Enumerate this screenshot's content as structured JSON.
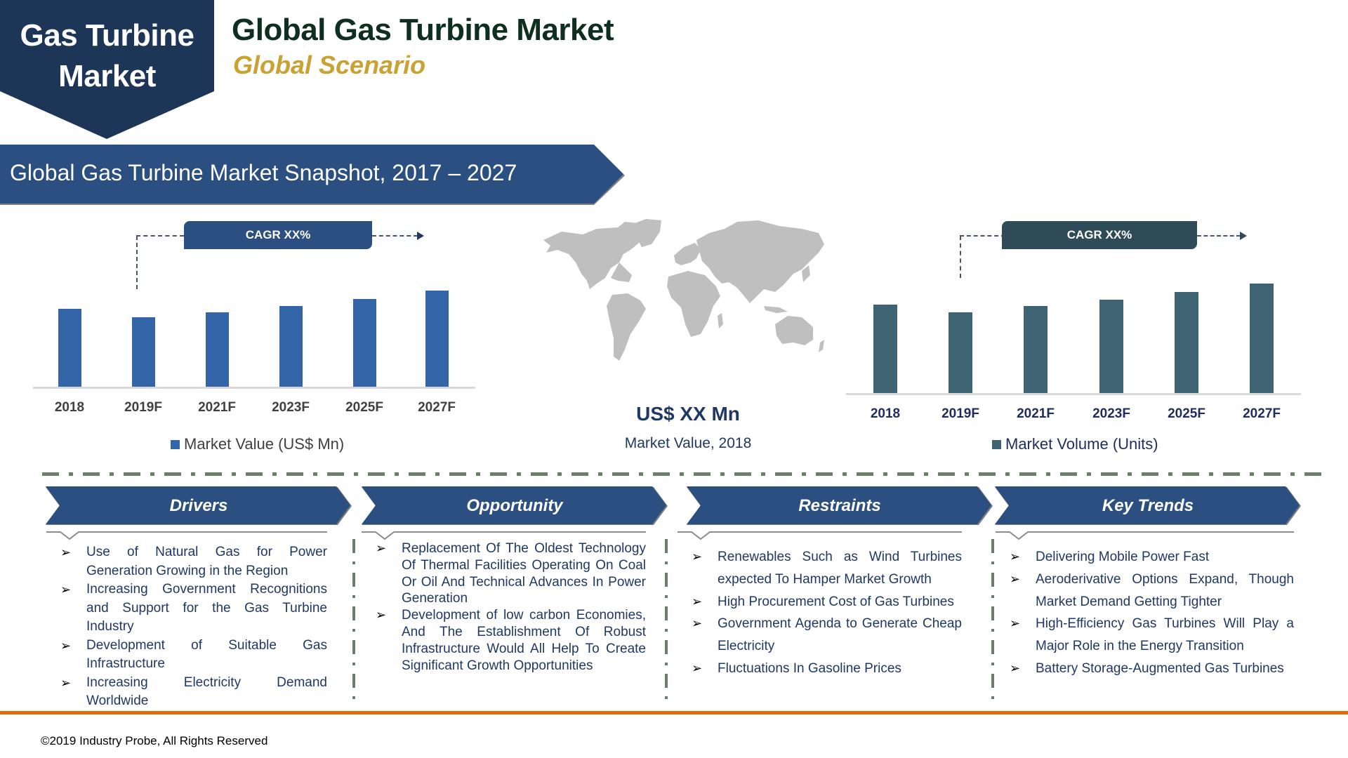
{
  "header": {
    "badge_line1": "Gas Turbine",
    "badge_line2": "Market",
    "title": "Global Gas Turbine Market",
    "subtitle": "Global Scenario"
  },
  "banner": {
    "title": "Global Gas Turbine Market Snapshot, 2017 – 2027"
  },
  "colors": {
    "navy": "#1d3557",
    "banner_blue": "#2a4f80",
    "value_bar": "#3465a9",
    "volume_bar": "#3e6373",
    "volume_cagr": "#2f4b57",
    "gold": "#c9a233",
    "orange": "#e36c0a",
    "divider": "#6b7e6b"
  },
  "chart_data": [
    {
      "type": "bar",
      "title": "Market Value (US$ Mn)",
      "categories": [
        "2018",
        "2019F",
        "2021F",
        "2023F",
        "2025F",
        "2027F"
      ],
      "values": [
        112,
        100,
        107,
        116,
        126,
        138
      ],
      "value_note": "relative bar heights; no axis values shown",
      "annotation": "CAGR XX%",
      "legend": [
        "Market Value (US$ Mn)"
      ],
      "legend_position": "bottom",
      "grid": false,
      "xlabel": "",
      "ylabel": ""
    },
    {
      "type": "bar",
      "title": "Market Volume (Units)",
      "categories": [
        "2018",
        "2019F",
        "2021F",
        "2023F",
        "2025F",
        "2027F"
      ],
      "values": [
        127,
        116,
        125,
        134,
        145,
        157
      ],
      "value_note": "relative bar heights; no axis values shown",
      "annotation": "CAGR XX%",
      "legend": [
        "Market Volume (Units)"
      ],
      "legend_position": "bottom",
      "grid": false,
      "xlabel": "",
      "ylabel": ""
    }
  ],
  "value_chart": {
    "cagr": "CAGR XX%",
    "legend": "Market Value (US$ Mn)",
    "labels": [
      "2018",
      "2019F",
      "2021F",
      "2023F",
      "2025F",
      "2027F"
    ]
  },
  "volume_chart": {
    "cagr": "CAGR XX%",
    "legend": "Market Volume (Units)",
    "labels": [
      "2018",
      "2019F",
      "2021F",
      "2023F",
      "2025F",
      "2027F"
    ]
  },
  "center": {
    "value": "US$ XX Mn",
    "caption": "Market Value, 2018",
    "map_icon": "world-map"
  },
  "sections": [
    {
      "title": "Drivers",
      "items": [
        "Use of Natural Gas for Power Generation Growing in the Region",
        "Increasing Government Recognitions and Support for the Gas Turbine Industry",
        "Development of Suitable Gas Infrastructure",
        "Increasing Electricity Demand Worldwide"
      ]
    },
    {
      "title": "Opportunity",
      "items": [
        "Replacement Of The Oldest Technology Of Thermal Facilities Operating On Coal Or Oil And Technical Advances In Power Generation",
        "Development of low carbon Economies, And The Establishment Of Robust Infrastructure Would All Help To Create Significant Growth Opportunities"
      ]
    },
    {
      "title": "Restraints",
      "items": [
        "Renewables Such as Wind Turbines expected To Hamper Market Growth",
        "High Procurement Cost of Gas Turbines",
        "Government Agenda to Generate Cheap Electricity",
        "Fluctuations In Gasoline Prices"
      ]
    },
    {
      "title": "Key Trends",
      "items": [
        "Delivering Mobile Power Fast",
        "Aeroderivative Options Expand, Though Market Demand Getting Tighter",
        "High-Efficiency Gas Turbines Will Play a Major Role in the Energy Transition",
        "Battery Storage-Augmented Gas Turbines"
      ]
    }
  ],
  "bullet_glyph": "➢",
  "footer": {
    "copyright": "©2019 Industry Probe, All Rights Reserved"
  }
}
